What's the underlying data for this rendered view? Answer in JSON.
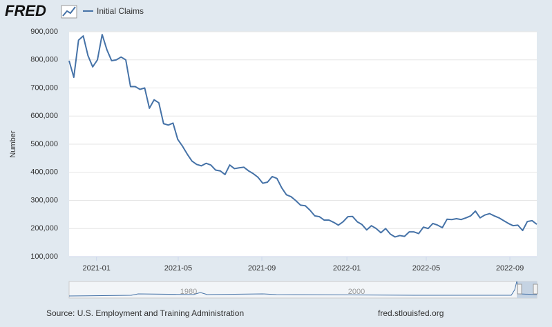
{
  "brand": "FRED",
  "chart_data": {
    "type": "line",
    "series": [
      {
        "name": "Initial Claims",
        "color": "#4572a7",
        "values": [
          797000,
          738000,
          870000,
          885000,
          815000,
          775000,
          800000,
          890000,
          836000,
          797000,
          800000,
          810000,
          800000,
          705000,
          705000,
          695000,
          700000,
          628000,
          658000,
          647000,
          573000,
          568000,
          575000,
          517000,
          493000,
          465000,
          440000,
          428000,
          423000,
          432000,
          426000,
          408000,
          405000,
          392000,
          426000,
          413000,
          416000,
          418000,
          405000,
          395000,
          382000,
          361000,
          365000,
          385000,
          378000,
          345000,
          320000,
          313000,
          299000,
          283000,
          281000,
          265000,
          245000,
          242000,
          230000,
          230000,
          222000,
          212000,
          224000,
          242000,
          243000,
          224000,
          214000,
          195000,
          210000,
          200000,
          185000,
          200000,
          180000,
          170000,
          175000,
          172000,
          188000,
          188000,
          182000,
          205000,
          200000,
          218000,
          212000,
          203000,
          233000,
          232000,
          235000,
          232000,
          238000,
          245000,
          262000,
          238000,
          248000,
          253000,
          245000,
          238000,
          228000,
          218000,
          210000,
          212000,
          193000,
          225000,
          228000,
          215000
        ]
      }
    ],
    "ylabel": "Number",
    "ylim": [
      100000,
      900000
    ],
    "yticks": [
      {
        "value": 100000,
        "label": "100,000"
      },
      {
        "value": 200000,
        "label": "200,000"
      },
      {
        "value": 300000,
        "label": "300,000"
      },
      {
        "value": 400000,
        "label": "400,000"
      },
      {
        "value": 500000,
        "label": "500,000"
      },
      {
        "value": 600000,
        "label": "600,000"
      },
      {
        "value": 700000,
        "label": "700,000"
      },
      {
        "value": 800000,
        "label": "800,000"
      },
      {
        "value": 900000,
        "label": "900,000"
      }
    ],
    "xlim": [
      0,
      99
    ],
    "xticks": [
      {
        "value": 5.8,
        "label": "2021-01"
      },
      {
        "value": 23.1,
        "label": "2021-05"
      },
      {
        "value": 40.8,
        "label": "2021-09"
      },
      {
        "value": 58.8,
        "label": "2022-01"
      },
      {
        "value": 75.6,
        "label": "2022-05"
      },
      {
        "value": 93.3,
        "label": "2022-09"
      }
    ],
    "grid": true,
    "navigator_labels": [
      "1980",
      "2000"
    ]
  },
  "footer": {
    "source": "Source: U.S. Employment and Training Administration",
    "site": "fred.stlouisfed.org"
  }
}
